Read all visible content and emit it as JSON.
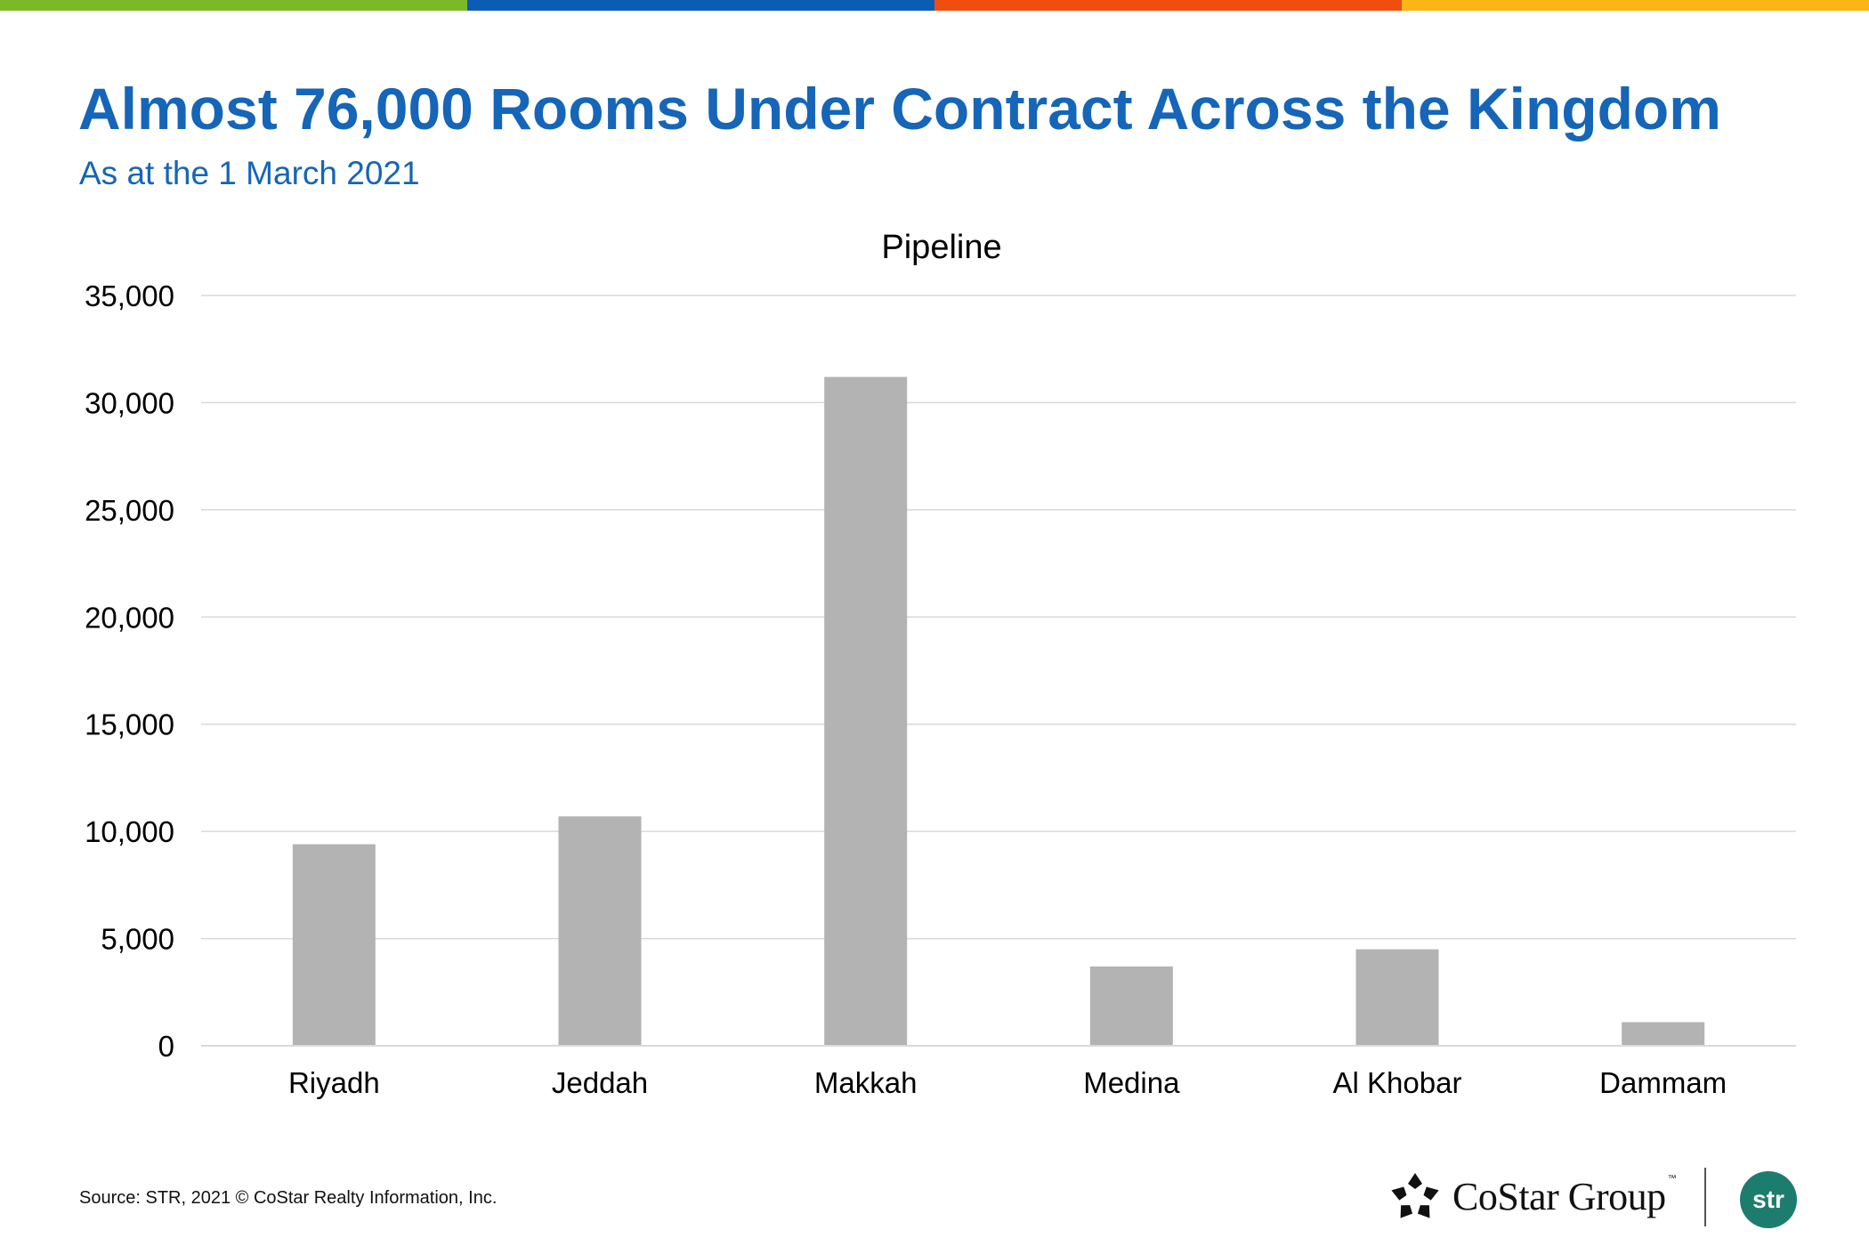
{
  "header": {
    "title": "Almost 76,000 Rooms Under Contract Across the Kingdom",
    "subtitle": "As at the 1 March 2021"
  },
  "colors": {
    "accent": "#1565b8",
    "bar": "#b3b3b3",
    "grid": "#d9d9d9",
    "top_bar": [
      "#7ab928",
      "#0b5cb5",
      "#f04e0f",
      "#fbb514"
    ],
    "str_badge": "#1c7d6e"
  },
  "chart_data": {
    "type": "bar",
    "title": "Pipeline",
    "xlabel": "",
    "ylabel": "",
    "categories": [
      "Riyadh",
      "Jeddah",
      "Makkah",
      "Medina",
      "Al Khobar",
      "Dammam"
    ],
    "values": [
      9400,
      10700,
      31200,
      3700,
      4500,
      1100
    ],
    "ylim": [
      0,
      35000
    ],
    "yticks": [
      0,
      5000,
      10000,
      15000,
      20000,
      25000,
      30000,
      35000
    ],
    "ytick_labels": [
      "0",
      "5,000",
      "10,000",
      "15,000",
      "20,000",
      "25,000",
      "30,000",
      "35,000"
    ],
    "grid": true,
    "legend": "none"
  },
  "footer": {
    "source": "Source: STR, 2021 © CoStar Realty Information, Inc.",
    "costar_logo_text": "CoStar Group",
    "costar_tm": "™",
    "costar_logo_icon": "costar-star-icon",
    "str_logo_text": "str"
  }
}
